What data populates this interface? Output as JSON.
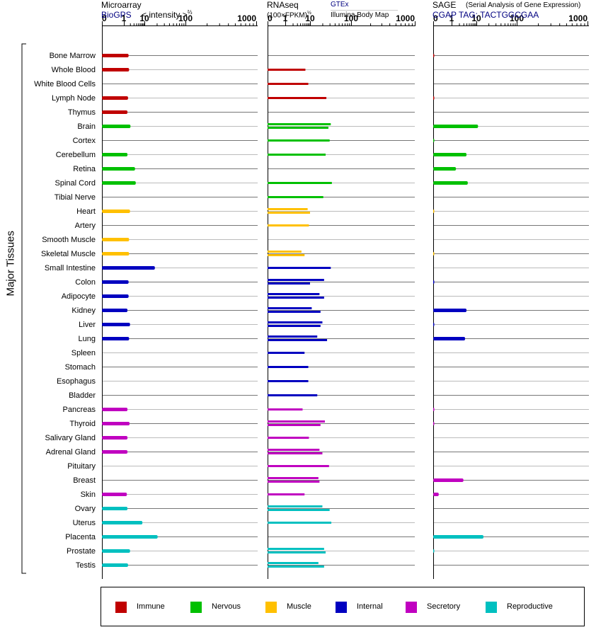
{
  "headers": {
    "microarray": {
      "title": "Microarray",
      "source": "BioGPS",
      "scale": "< intensity >",
      "scale_exp": "⅔"
    },
    "rnaseq": {
      "title": "RNAseq",
      "scale": "(100×FPKM)",
      "scale_exp": "½",
      "source1": "GTEx",
      "source2": "Illumina Body Map"
    },
    "sage": {
      "title": "SAGE",
      "subtitle": "(Serial Analysis of Gene Expression)",
      "tag": "CGAP TAG: TACTGGCGAA"
    }
  },
  "y_axis_label": "Major Tissues",
  "axis_ticks": [
    "0",
    "1",
    "10",
    "100",
    "1000"
  ],
  "legend": [
    {
      "label": "Immune",
      "color": "#c00000"
    },
    {
      "label": "Nervous",
      "color": "#00c000"
    },
    {
      "label": "Muscle",
      "color": "#ffc000"
    },
    {
      "label": "Internal",
      "color": "#0000c0"
    },
    {
      "label": "Secretory",
      "color": "#c000c0"
    },
    {
      "label": "Reproductive",
      "color": "#00c0c0"
    }
  ],
  "chart_data": {
    "type": "bar",
    "categories": [
      "Bone Marrow",
      "Whole Blood",
      "White Blood Cells",
      "Lymph Node",
      "Thymus",
      "Brain",
      "Cortex",
      "Cerebellum",
      "Retina",
      "Spinal Cord",
      "Tibial Nerve",
      "Heart",
      "Artery",
      "Smooth Muscle",
      "Skeletal Muscle",
      "Small Intestine",
      "Colon",
      "Adipocyte",
      "Kidney",
      "Liver",
      "Lung",
      "Spleen",
      "Stomach",
      "Esophagus",
      "Bladder",
      "Pancreas",
      "Thyroid",
      "Salivary Gland",
      "Adrenal Gland",
      "Pituitary",
      "Breast",
      "Skin",
      "Ovary",
      "Uterus",
      "Placenta",
      "Prostate",
      "Testis"
    ],
    "category_groups": [
      "Immune",
      "Immune",
      "Immune",
      "Immune",
      "Immune",
      "Nervous",
      "Nervous",
      "Nervous",
      "Nervous",
      "Nervous",
      "Nervous",
      "Muscle",
      "Muscle",
      "Muscle",
      "Muscle",
      "Internal",
      "Internal",
      "Internal",
      "Internal",
      "Internal",
      "Internal",
      "Internal",
      "Internal",
      "Internal",
      "Internal",
      "Secretory",
      "Secretory",
      "Secretory",
      "Secretory",
      "Secretory",
      "Secretory",
      "Secretory",
      "Reproductive",
      "Reproductive",
      "Reproductive",
      "Reproductive",
      "Reproductive"
    ],
    "xlim": [
      0,
      1000
    ],
    "x_scale": "0, 1, 10, 100, 1000 (log-spaced ticks)",
    "panels": [
      {
        "name": "Microarray",
        "values": [
          1.7,
          1.8,
          null,
          1.6,
          1.5,
          2.1,
          null,
          1.5,
          3.5,
          3.8,
          null,
          2.0,
          null,
          1.8,
          1.8,
          18,
          1.7,
          1.7,
          1.5,
          2.0,
          1.8,
          null,
          null,
          null,
          null,
          1.5,
          1.9,
          1.5,
          1.5,
          null,
          null,
          1.4,
          1.5,
          8,
          21,
          2.0,
          1.6
        ]
      },
      {
        "name": "RNAseq",
        "values": [
          [
            null
          ],
          [
            6.5
          ],
          [
            8.5
          ],
          [
            25
          ],
          [
            null
          ],
          [
            32,
            28
          ],
          [
            30
          ],
          [
            24
          ],
          [
            null
          ],
          [
            34
          ],
          [
            21
          ],
          [
            8,
            10
          ],
          [
            9
          ],
          [
            null
          ],
          [
            4.5,
            6
          ],
          [
            32
          ],
          [
            22,
            10
          ],
          [
            17,
            22
          ],
          [
            11,
            18
          ],
          [
            20,
            18
          ],
          [
            15,
            26
          ],
          [
            6
          ],
          [
            8.5
          ],
          [
            8.5
          ],
          [
            15
          ],
          [
            5
          ],
          [
            23,
            18
          ],
          [
            9
          ],
          [
            17,
            20
          ],
          [
            29
          ],
          [
            16,
            17
          ],
          [
            6
          ],
          [
            20,
            30
          ],
          [
            33
          ],
          [
            null
          ],
          [
            22,
            24
          ],
          [
            16,
            22
          ]
        ]
      },
      {
        "name": "SAGE",
        "values": [
          0.04,
          null,
          null,
          0.04,
          null,
          11,
          0.05,
          4,
          1.5,
          4.5,
          null,
          0.02,
          null,
          null,
          0.02,
          null,
          0.05,
          null,
          4,
          0.05,
          3.5,
          null,
          null,
          null,
          null,
          0.05,
          0.05,
          null,
          null,
          null,
          3,
          0.3,
          null,
          null,
          15,
          0.04,
          null
        ]
      }
    ]
  }
}
